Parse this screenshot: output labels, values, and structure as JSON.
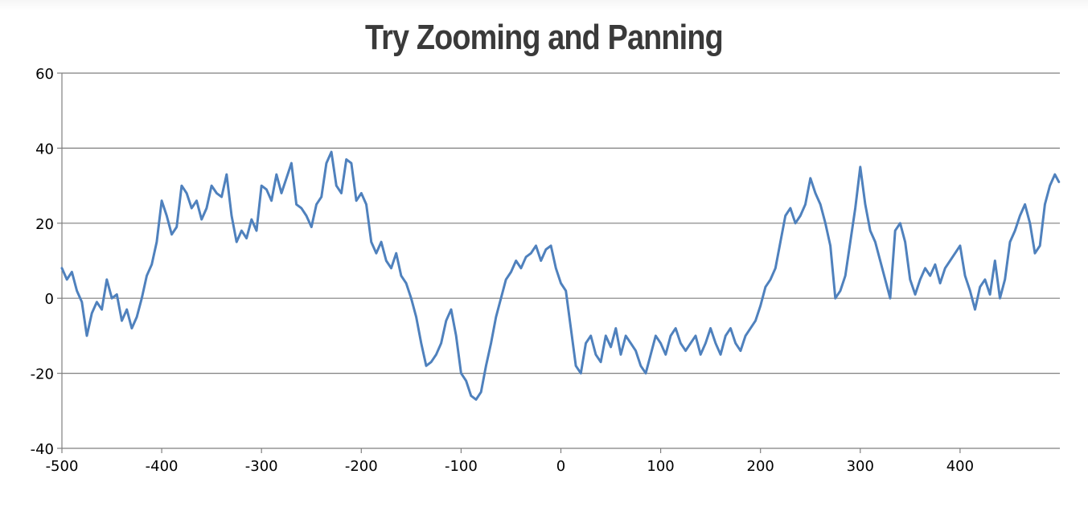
{
  "chart_data": {
    "type": "line",
    "title": "Try Zooming and Panning",
    "xlabel": "",
    "ylabel": "",
    "xlim": [
      -500,
      500
    ],
    "ylim": [
      -40,
      60
    ],
    "x_ticks": [
      -500,
      -400,
      -300,
      -200,
      -100,
      0,
      100,
      200,
      300,
      400
    ],
    "y_ticks": [
      -40,
      -20,
      0,
      20,
      40,
      60
    ],
    "grid": true,
    "legend": "none",
    "line_color": "#4f81bd",
    "series": [
      {
        "x": [
          -500,
          -495,
          -490,
          -485,
          -480,
          -475,
          -470,
          -465,
          -460,
          -455,
          -450,
          -445,
          -440,
          -435,
          -430,
          -425,
          -420,
          -415,
          -410,
          -405,
          -400,
          -395,
          -390,
          -385,
          -380,
          -375,
          -370,
          -365,
          -360,
          -355,
          -350,
          -345,
          -340,
          -335,
          -330,
          -325,
          -320,
          -315,
          -310,
          -305,
          -300,
          -295,
          -290,
          -285,
          -280,
          -275,
          -270,
          -265,
          -260,
          -255,
          -250,
          -245,
          -240,
          -235,
          -230,
          -225,
          -220,
          -215,
          -210,
          -205,
          -200,
          -195,
          -190,
          -185,
          -180,
          -175,
          -170,
          -165,
          -160,
          -155,
          -150,
          -145,
          -140,
          -135,
          -130,
          -125,
          -120,
          -115,
          -110,
          -105,
          -100,
          -95,
          -90,
          -85,
          -80,
          -75,
          -70,
          -65,
          -60,
          -55,
          -50,
          -45,
          -40,
          -35,
          -30,
          -25,
          -20,
          -15,
          -10,
          -5,
          0,
          5,
          10,
          15,
          20,
          25,
          30,
          35,
          40,
          45,
          50,
          55,
          60,
          65,
          70,
          75,
          80,
          85,
          90,
          95,
          100,
          105,
          110,
          115,
          120,
          125,
          130,
          135,
          140,
          145,
          150,
          155,
          160,
          165,
          170,
          175,
          180,
          185,
          190,
          195,
          200,
          205,
          210,
          215,
          220,
          225,
          230,
          235,
          240,
          245,
          250,
          255,
          260,
          265,
          270,
          275,
          280,
          285,
          290,
          295,
          300,
          305,
          310,
          315,
          320,
          325,
          330,
          335,
          340,
          345,
          350,
          355,
          360,
          365,
          370,
          375,
          380,
          385,
          390,
          395,
          400,
          405,
          410,
          415,
          420,
          425,
          430,
          435,
          440,
          445,
          450,
          455,
          460,
          465,
          470,
          475,
          480,
          485,
          490,
          495,
          499
        ],
        "values": [
          8,
          5,
          7,
          2,
          -1,
          -10,
          -4,
          -1,
          -3,
          5,
          0,
          1,
          -6,
          -3,
          -8,
          -5,
          0,
          6,
          9,
          15,
          26,
          22,
          17,
          19,
          30,
          28,
          24,
          26,
          21,
          24,
          30,
          28,
          27,
          33,
          22,
          15,
          18,
          16,
          21,
          18,
          30,
          29,
          26,
          33,
          28,
          32,
          36,
          25,
          24,
          22,
          19,
          25,
          27,
          36,
          39,
          30,
          28,
          37,
          36,
          26,
          28,
          25,
          15,
          12,
          15,
          10,
          8,
          12,
          6,
          4,
          0,
          -5,
          -12,
          -18,
          -17,
          -15,
          -12,
          -6,
          -3,
          -10,
          -20,
          -22,
          -26,
          -27,
          -25,
          -18,
          -12,
          -5,
          0,
          5,
          7,
          10,
          8,
          11,
          12,
          14,
          10,
          13,
          14,
          8,
          4,
          2,
          -8,
          -18,
          -20,
          -12,
          -10,
          -15,
          -17,
          -10,
          -13,
          -8,
          -15,
          -10,
          -12,
          -14,
          -18,
          -20,
          -15,
          -10,
          -12,
          -15,
          -10,
          -8,
          -12,
          -14,
          -12,
          -10,
          -15,
          -12,
          -8,
          -12,
          -15,
          -10,
          -8,
          -12,
          -14,
          -10,
          -8,
          -6,
          -2,
          3,
          5,
          8,
          15,
          22,
          24,
          20,
          22,
          25,
          32,
          28,
          25,
          20,
          14,
          0,
          2,
          6,
          15,
          24,
          35,
          25,
          18,
          15,
          10,
          5,
          0,
          18,
          20,
          15,
          5,
          1,
          5,
          8,
          6,
          9,
          4,
          8,
          10,
          12,
          14,
          6,
          2,
          -3,
          3,
          5,
          1,
          10,
          0,
          5,
          15,
          18,
          22,
          25,
          20,
          12,
          14,
          25,
          30,
          33,
          31
        ]
      }
    ]
  }
}
